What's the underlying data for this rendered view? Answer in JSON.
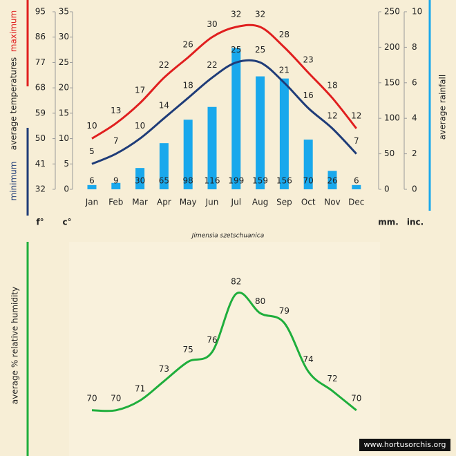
{
  "chart_data": [
    {
      "type": "combo",
      "ylabel": "average temperatures",
      "y2label": "average rainfall",
      "subtitle": "Jimensia szetschuanica",
      "yunit": "c°",
      "y3unit": "f°",
      "y2unit": "mm.",
      "y4unit": "inc.",
      "categories": [
        "Jan",
        "Feb",
        "Mar",
        "Apr",
        "May",
        "Jun",
        "Jul",
        "Aug",
        "Sep",
        "Oct",
        "Nov",
        "Dec"
      ],
      "series": [
        {
          "name": "maximum",
          "kind": "line",
          "color": "#e01f1f",
          "values": [
            10,
            13,
            17,
            22,
            26,
            30,
            32,
            32,
            28,
            23,
            18,
            12
          ]
        },
        {
          "name": "minimum",
          "kind": "line",
          "color": "#1f3c78",
          "values": [
            5,
            7,
            10,
            14,
            18,
            22,
            25,
            25,
            21,
            16,
            12,
            7
          ]
        },
        {
          "kind": "bar",
          "axis": "y2",
          "color": "#19a8ec",
          "values": [
            6,
            9,
            30,
            65,
            98,
            116,
            199,
            159,
            156,
            70,
            26,
            6
          ]
        }
      ],
      "ylim": [
        0,
        35
      ],
      "yticks": [
        0,
        5,
        10,
        15,
        20,
        25,
        30,
        35
      ],
      "y3lim": [
        32,
        95
      ],
      "y3ticks": [
        32,
        41,
        50,
        59,
        68,
        77,
        86,
        95
      ],
      "y2lim": [
        0,
        250
      ],
      "y2ticks": [
        0,
        50,
        100,
        150,
        200,
        250
      ],
      "y4lim": [
        0,
        10
      ],
      "y4ticks": [
        0,
        2,
        4,
        6,
        8,
        10
      ]
    },
    {
      "type": "line",
      "ylabel": "average % relative humidity",
      "color": "#1fae3c",
      "values": [
        70,
        70,
        71,
        73,
        75,
        76,
        82,
        80,
        79,
        74,
        72,
        70
      ],
      "ylim": [
        66,
        87
      ],
      "footer": "www.hortusorchis.org"
    }
  ]
}
